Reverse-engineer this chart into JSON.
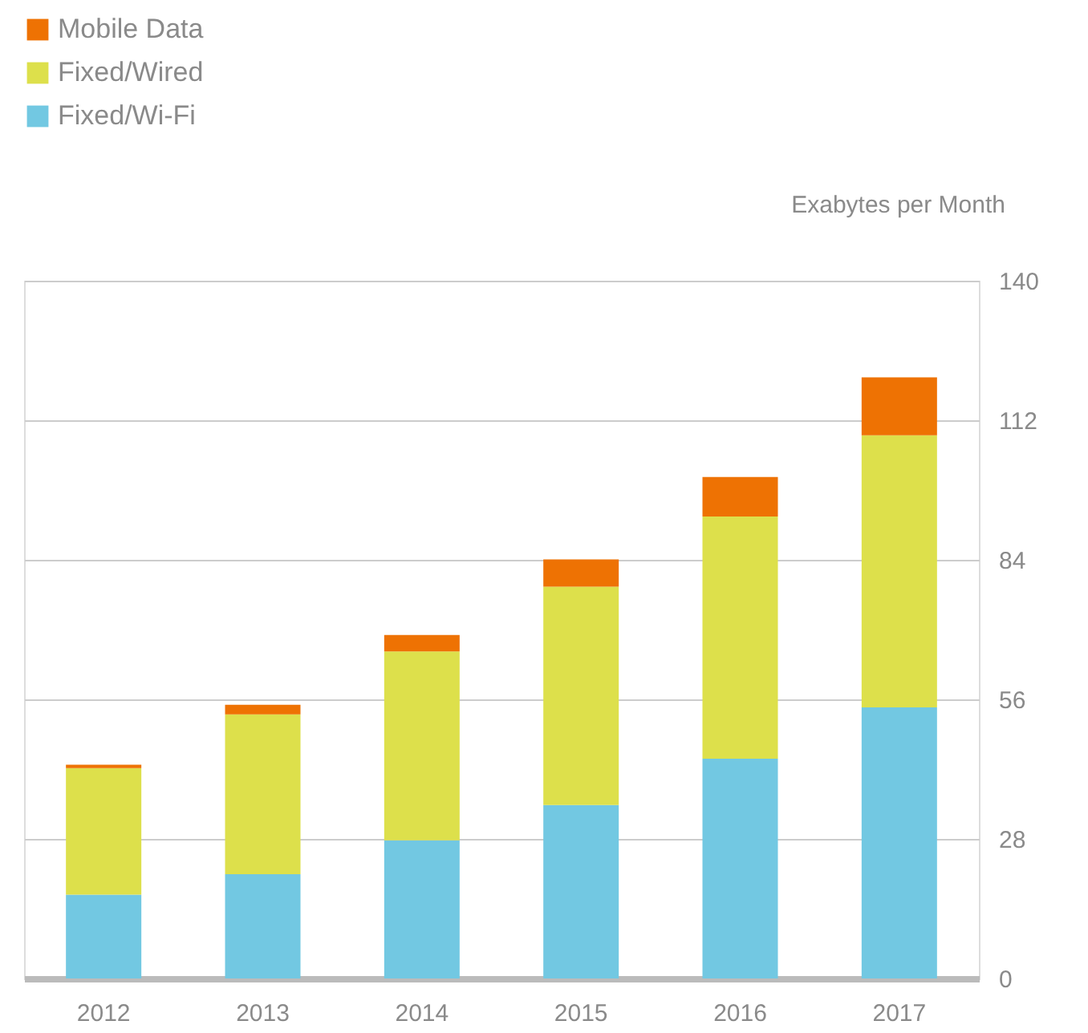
{
  "chart_data": {
    "type": "bar",
    "stacked": true,
    "ylabel": "Exabytes per Month",
    "categories": [
      "2012",
      "2013",
      "2014",
      "2015",
      "2016",
      "2017"
    ],
    "series": [
      {
        "name": "Fixed/Wi-Fi",
        "color": "#72c8e2",
        "values": [
          16.8,
          20.9,
          27.7,
          34.8,
          44.1,
          54.4
        ]
      },
      {
        "name": "Fixed/Wired",
        "color": "#dde04b",
        "values": [
          25.4,
          32.1,
          37.9,
          43.8,
          48.6,
          54.6
        ]
      },
      {
        "name": "Mobile Data",
        "color": "#ee7203",
        "values": [
          0.7,
          1.9,
          3.3,
          5.5,
          7.9,
          11.6
        ]
      }
    ],
    "ylim": [
      0,
      140
    ],
    "yticks": [
      0,
      28,
      56,
      84,
      112,
      140
    ],
    "grid": "y",
    "legend": "top left"
  }
}
